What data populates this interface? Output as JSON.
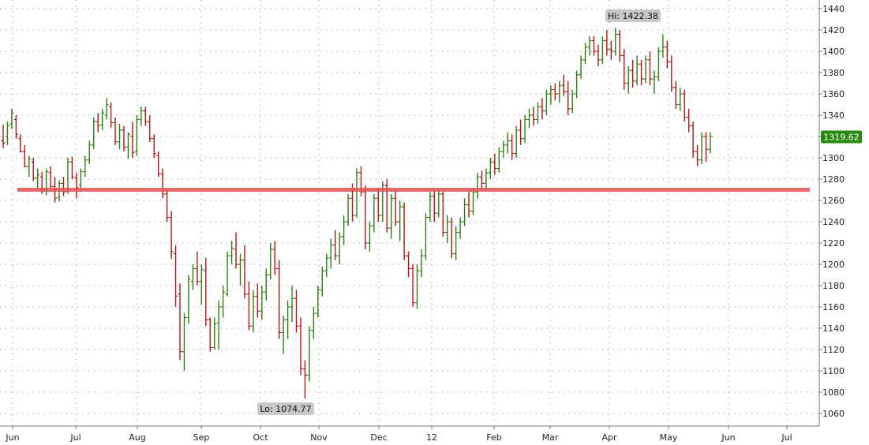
{
  "chart_data": {
    "type": "ohlc",
    "x_ticks": [
      "Jun",
      "Jul",
      "Aug",
      "Sep",
      "Oct",
      "Nov",
      "Dec",
      "12",
      "Feb",
      "Mar",
      "Apr",
      "May",
      "Jun",
      "Jul"
    ],
    "y_ticks": [
      1440,
      1420,
      1400,
      1380,
      1360,
      1340,
      1320,
      1300,
      1280,
      1260,
      1240,
      1220,
      1200,
      1180,
      1160,
      1140,
      1120,
      1100,
      1080,
      1060
    ],
    "ylim": [
      1052,
      1450
    ],
    "grid": true,
    "current_price": "1319.62",
    "high_label": "Hi: 1422.38",
    "low_label": "Lo: 1074.77",
    "support_level": 1270,
    "colors": {
      "up": "#2e7d10",
      "down": "#b01414",
      "line": "#e05050",
      "last_price_bg": "#2a8a12"
    },
    "series": [
      {
        "values": [
          [
            1316,
            1331,
            1309,
            1314
          ],
          [
            1320,
            1334,
            1312,
            1330
          ],
          [
            1332,
            1346,
            1327,
            1342
          ],
          [
            1336,
            1340,
            1318,
            1322
          ],
          [
            1318,
            1322,
            1305,
            1306
          ],
          [
            1306,
            1312,
            1291,
            1292
          ],
          [
            1292,
            1302,
            1282,
            1299
          ],
          [
            1296,
            1300,
            1278,
            1281
          ],
          [
            1281,
            1290,
            1270,
            1284
          ],
          [
            1282,
            1287,
            1266,
            1269
          ],
          [
            1270,
            1290,
            1265,
            1287
          ],
          [
            1286,
            1292,
            1271,
            1273
          ],
          [
            1273,
            1282,
            1258,
            1262
          ],
          [
            1263,
            1279,
            1259,
            1276
          ],
          [
            1276,
            1282,
            1264,
            1268
          ],
          [
            1269,
            1300,
            1266,
            1296
          ],
          [
            1296,
            1301,
            1280,
            1282
          ],
          [
            1281,
            1286,
            1262,
            1272
          ],
          [
            1274,
            1290,
            1268,
            1287
          ],
          [
            1287,
            1302,
            1282,
            1298
          ],
          [
            1298,
            1316,
            1294,
            1312
          ],
          [
            1312,
            1338,
            1308,
            1334
          ],
          [
            1334,
            1342,
            1324,
            1330
          ],
          [
            1331,
            1346,
            1326,
            1342
          ],
          [
            1340,
            1356,
            1336,
            1350
          ],
          [
            1348,
            1352,
            1328,
            1333
          ],
          [
            1333,
            1338,
            1312,
            1315
          ],
          [
            1315,
            1332,
            1308,
            1326
          ],
          [
            1326,
            1330,
            1306,
            1310
          ],
          [
            1310,
            1324,
            1299,
            1322
          ],
          [
            1320,
            1334,
            1300,
            1305
          ],
          [
            1306,
            1340,
            1302,
            1336
          ],
          [
            1336,
            1348,
            1330,
            1344
          ],
          [
            1344,
            1348,
            1330,
            1334
          ],
          [
            1334,
            1340,
            1315,
            1318
          ],
          [
            1318,
            1322,
            1300,
            1304
          ],
          [
            1302,
            1306,
            1282,
            1285
          ],
          [
            1285,
            1290,
            1262,
            1266
          ],
          [
            1266,
            1270,
            1240,
            1244
          ],
          [
            1244,
            1250,
            1205,
            1212
          ],
          [
            1210,
            1218,
            1160,
            1170
          ],
          [
            1172,
            1182,
            1110,
            1118
          ],
          [
            1118,
            1154,
            1100,
            1150
          ],
          [
            1150,
            1190,
            1144,
            1186
          ],
          [
            1184,
            1200,
            1176,
            1196
          ],
          [
            1196,
            1212,
            1180,
            1184
          ],
          [
            1184,
            1200,
            1162,
            1195
          ],
          [
            1194,
            1206,
            1142,
            1148
          ],
          [
            1148,
            1150,
            1118,
            1122
          ],
          [
            1122,
            1150,
            1120,
            1144
          ],
          [
            1145,
            1166,
            1120,
            1160
          ],
          [
            1160,
            1180,
            1150,
            1174
          ],
          [
            1172,
            1212,
            1170,
            1208
          ],
          [
            1208,
            1222,
            1200,
            1215
          ],
          [
            1214,
            1230,
            1196,
            1200
          ],
          [
            1200,
            1210,
            1180,
            1204
          ],
          [
            1204,
            1218,
            1168,
            1172
          ],
          [
            1172,
            1184,
            1138,
            1142
          ],
          [
            1142,
            1176,
            1136,
            1170
          ],
          [
            1170,
            1182,
            1150,
            1156
          ],
          [
            1156,
            1180,
            1148,
            1174
          ],
          [
            1174,
            1196,
            1166,
            1190
          ],
          [
            1190,
            1220,
            1186,
            1214
          ],
          [
            1214,
            1222,
            1190,
            1196
          ],
          [
            1196,
            1204,
            1130,
            1136
          ],
          [
            1136,
            1152,
            1116,
            1148
          ],
          [
            1148,
            1166,
            1130,
            1160
          ],
          [
            1160,
            1180,
            1146,
            1168
          ],
          [
            1168,
            1176,
            1136,
            1142
          ],
          [
            1142,
            1150,
            1096,
            1102
          ],
          [
            1102,
            1110,
            1074,
            1096
          ],
          [
            1096,
            1142,
            1090,
            1138
          ],
          [
            1138,
            1160,
            1130,
            1154
          ],
          [
            1154,
            1180,
            1150,
            1176
          ],
          [
            1176,
            1198,
            1170,
            1194
          ],
          [
            1194,
            1210,
            1188,
            1206
          ],
          [
            1206,
            1224,
            1196,
            1218
          ],
          [
            1218,
            1232,
            1204,
            1208
          ],
          [
            1208,
            1230,
            1200,
            1226
          ],
          [
            1226,
            1246,
            1218,
            1240
          ],
          [
            1240,
            1266,
            1236,
            1262
          ],
          [
            1262,
            1276,
            1240,
            1246
          ],
          [
            1246,
            1290,
            1244,
            1286
          ],
          [
            1286,
            1292,
            1264,
            1268
          ],
          [
            1268,
            1274,
            1214,
            1220
          ],
          [
            1220,
            1240,
            1212,
            1236
          ],
          [
            1236,
            1266,
            1230,
            1262
          ],
          [
            1262,
            1272,
            1240,
            1246
          ],
          [
            1246,
            1278,
            1240,
            1274
          ],
          [
            1274,
            1280,
            1230,
            1234
          ],
          [
            1234,
            1266,
            1224,
            1262
          ],
          [
            1262,
            1270,
            1236,
            1240
          ],
          [
            1240,
            1260,
            1222,
            1254
          ],
          [
            1254,
            1258,
            1204,
            1208
          ],
          [
            1208,
            1212,
            1188,
            1196
          ],
          [
            1196,
            1200,
            1160,
            1164
          ],
          [
            1164,
            1200,
            1158,
            1194
          ],
          [
            1194,
            1214,
            1188,
            1208
          ],
          [
            1208,
            1248,
            1204,
            1244
          ],
          [
            1244,
            1268,
            1240,
            1264
          ],
          [
            1264,
            1268,
            1240,
            1248
          ],
          [
            1248,
            1270,
            1244,
            1266
          ],
          [
            1266,
            1268,
            1226,
            1230
          ],
          [
            1230,
            1246,
            1220,
            1240
          ],
          [
            1240,
            1244,
            1206,
            1210
          ],
          [
            1210,
            1236,
            1204,
            1230
          ],
          [
            1230,
            1244,
            1224,
            1240
          ],
          [
            1240,
            1262,
            1236,
            1256
          ],
          [
            1256,
            1268,
            1244,
            1250
          ],
          [
            1250,
            1272,
            1246,
            1268
          ],
          [
            1268,
            1286,
            1262,
            1282
          ],
          [
            1282,
            1288,
            1270,
            1276
          ],
          [
            1276,
            1290,
            1270,
            1286
          ],
          [
            1286,
            1300,
            1280,
            1296
          ],
          [
            1296,
            1304,
            1284,
            1290
          ],
          [
            1290,
            1310,
            1286,
            1306
          ],
          [
            1306,
            1316,
            1300,
            1312
          ],
          [
            1312,
            1324,
            1304,
            1316
          ],
          [
            1316,
            1322,
            1298,
            1304
          ],
          [
            1304,
            1330,
            1300,
            1326
          ],
          [
            1326,
            1336,
            1312,
            1318
          ],
          [
            1318,
            1340,
            1314,
            1336
          ],
          [
            1336,
            1346,
            1328,
            1340
          ],
          [
            1340,
            1348,
            1330,
            1336
          ],
          [
            1336,
            1352,
            1332,
            1348
          ],
          [
            1348,
            1356,
            1336,
            1344
          ],
          [
            1344,
            1364,
            1340,
            1360
          ],
          [
            1360,
            1368,
            1350,
            1364
          ],
          [
            1364,
            1370,
            1354,
            1360
          ],
          [
            1360,
            1372,
            1352,
            1368
          ],
          [
            1368,
            1378,
            1358,
            1362
          ],
          [
            1362,
            1372,
            1340,
            1346
          ],
          [
            1346,
            1364,
            1342,
            1360
          ],
          [
            1360,
            1382,
            1356,
            1378
          ],
          [
            1378,
            1396,
            1374,
            1392
          ],
          [
            1392,
            1408,
            1388,
            1404
          ],
          [
            1404,
            1414,
            1396,
            1410
          ],
          [
            1410,
            1414,
            1396,
            1400
          ],
          [
            1400,
            1406,
            1386,
            1392
          ],
          [
            1392,
            1414,
            1388,
            1410
          ],
          [
            1410,
            1420,
            1396,
            1402
          ],
          [
            1402,
            1410,
            1392,
            1400
          ],
          [
            1400,
            1422,
            1396,
            1416
          ],
          [
            1416,
            1420,
            1390,
            1396
          ],
          [
            1396,
            1402,
            1364,
            1370
          ],
          [
            1370,
            1386,
            1360,
            1382
          ],
          [
            1382,
            1392,
            1366,
            1372
          ],
          [
            1372,
            1396,
            1368,
            1388
          ],
          [
            1388,
            1392,
            1368,
            1374
          ],
          [
            1374,
            1396,
            1370,
            1392
          ],
          [
            1392,
            1400,
            1368,
            1374
          ],
          [
            1374,
            1382,
            1360,
            1376
          ],
          [
            1376,
            1404,
            1372,
            1400
          ],
          [
            1400,
            1416,
            1394,
            1404
          ],
          [
            1404,
            1410,
            1384,
            1390
          ],
          [
            1390,
            1396,
            1362,
            1366
          ],
          [
            1366,
            1372,
            1346,
            1350
          ],
          [
            1350,
            1366,
            1344,
            1360
          ],
          [
            1360,
            1364,
            1334,
            1338
          ],
          [
            1338,
            1346,
            1324,
            1330
          ],
          [
            1330,
            1334,
            1300,
            1306
          ],
          [
            1306,
            1312,
            1292,
            1298
          ],
          [
            1298,
            1324,
            1294,
            1320
          ],
          [
            1320,
            1324,
            1296,
            1308
          ],
          [
            1308,
            1324,
            1304,
            1320
          ]
        ]
      }
    ]
  }
}
